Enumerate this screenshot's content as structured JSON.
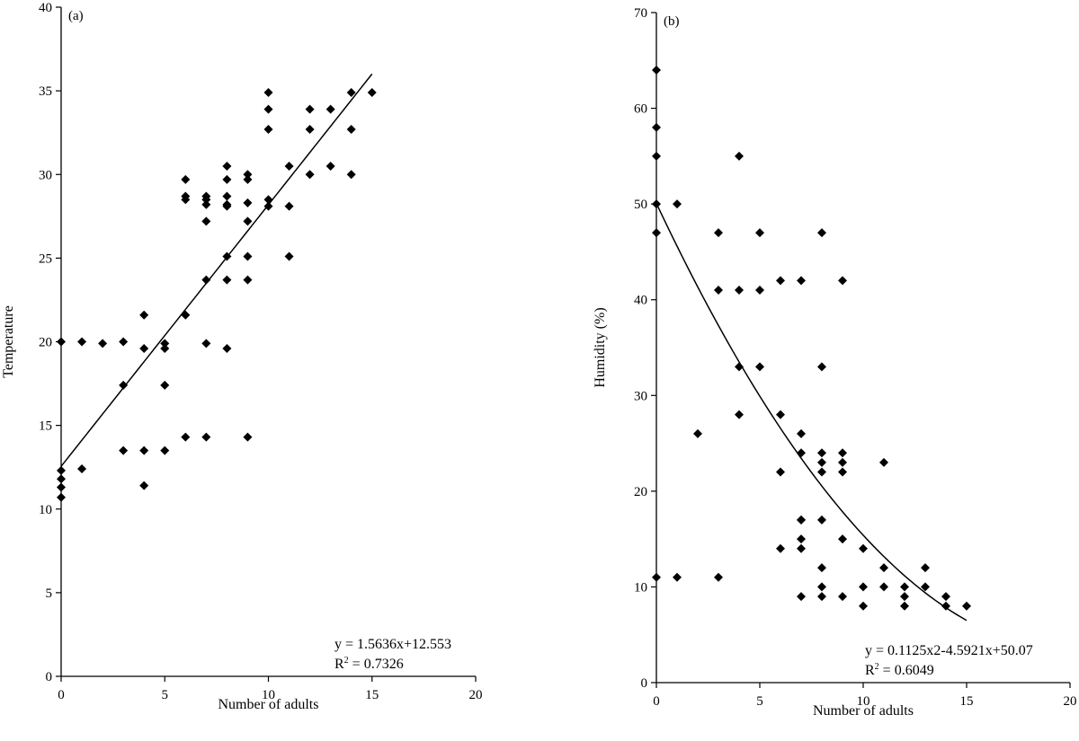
{
  "chart_data": [
    {
      "type": "scatter",
      "panel_label": "(a)",
      "title": "",
      "xlabel": "Number of adults",
      "ylabel": "Temperature",
      "xlim": [
        0,
        20
      ],
      "ylim": [
        0,
        40
      ],
      "xticks": [
        0,
        5,
        10,
        15,
        20
      ],
      "yticks": [
        0,
        5,
        10,
        15,
        20,
        25,
        30,
        35,
        40
      ],
      "grid": false,
      "marker_color": "#000000",
      "series": [
        {
          "x": [
            0,
            0,
            0,
            0,
            0,
            1,
            1,
            2,
            3,
            3,
            3,
            4,
            4,
            4,
            4,
            5,
            5,
            5,
            5,
            6,
            6,
            6,
            6,
            6,
            7,
            7,
            7,
            7,
            7,
            7,
            7,
            8,
            8,
            8,
            8,
            8,
            8,
            8,
            8,
            9,
            9,
            9,
            9,
            9,
            9,
            9,
            10,
            10,
            10,
            10,
            10,
            11,
            11,
            11,
            12,
            12,
            12,
            13,
            13,
            14,
            14,
            14,
            15
          ],
          "y": [
            20,
            12.3,
            11.8,
            11.3,
            10.7,
            20,
            12.4,
            19.9,
            20,
            17.4,
            13.5,
            21.6,
            19.6,
            13.5,
            11.4,
            19.9,
            19.6,
            17.4,
            13.5,
            29.7,
            28.7,
            28.5,
            21.6,
            14.3,
            28.7,
            28.5,
            28.2,
            27.2,
            23.7,
            19.9,
            14.3,
            30.5,
            29.7,
            28.7,
            28.2,
            28.1,
            25.1,
            23.7,
            19.6,
            30,
            29.7,
            28.3,
            27.2,
            25.1,
            23.7,
            14.3,
            34.9,
            33.9,
            32.7,
            28.5,
            28.1,
            30.5,
            28.1,
            25.1,
            33.9,
            32.7,
            30,
            33.9,
            30.5,
            34.9,
            32.7,
            30,
            34.9
          ]
        }
      ],
      "trendline": {
        "type": "linear",
        "slope": 1.5636,
        "intercept": 12.553,
        "x_range": [
          0,
          15
        ]
      },
      "equation_text": "y = 1.5636x+12.553",
      "r2_prefix": "R",
      "r2_sup": "2",
      "r2_value": " = 0.7326"
    },
    {
      "type": "scatter",
      "panel_label": "(b)",
      "title": "",
      "xlabel": "Number of adults",
      "ylabel": "Humidity (%)",
      "xlim": [
        0,
        20
      ],
      "ylim": [
        0,
        70
      ],
      "xticks": [
        0,
        5,
        10,
        15,
        20
      ],
      "yticks": [
        0,
        10,
        20,
        30,
        40,
        50,
        60,
        70
      ],
      "grid": false,
      "marker_color": "#000000",
      "series": [
        {
          "x": [
            0,
            0,
            0,
            0,
            0,
            0,
            1,
            1,
            2,
            3,
            3,
            3,
            4,
            4,
            4,
            4,
            5,
            5,
            5,
            6,
            6,
            6,
            6,
            7,
            7,
            7,
            7,
            7,
            7,
            7,
            7,
            8,
            8,
            8,
            8,
            8,
            8,
            8,
            8,
            8,
            9,
            9,
            9,
            9,
            9,
            9,
            10,
            10,
            10,
            11,
            11,
            11,
            12,
            12,
            12,
            13,
            13,
            14,
            14,
            15
          ],
          "y": [
            64,
            58,
            55,
            50,
            47,
            11,
            50,
            11,
            26,
            47,
            41,
            11,
            55,
            41,
            33,
            28,
            47,
            41,
            33,
            42,
            28,
            22,
            14,
            42,
            26,
            24,
            17,
            15,
            14,
            9,
            17,
            47,
            33,
            24,
            23,
            22,
            17,
            12,
            10,
            9,
            42,
            24,
            23,
            22,
            15,
            9,
            14,
            10,
            8,
            23,
            12,
            10,
            10,
            9,
            8,
            12,
            10,
            9,
            8,
            8
          ]
        }
      ],
      "trendline": {
        "type": "polynomial",
        "coefficients": [
          0.1125,
          -4.5921,
          50.07
        ],
        "x_range": [
          0,
          15
        ]
      },
      "equation_text": "y = 0.1125x2-4.5921x+50.07",
      "r2_prefix": "R",
      "r2_sup": "2",
      "r2_value": " = 0.6049"
    }
  ]
}
